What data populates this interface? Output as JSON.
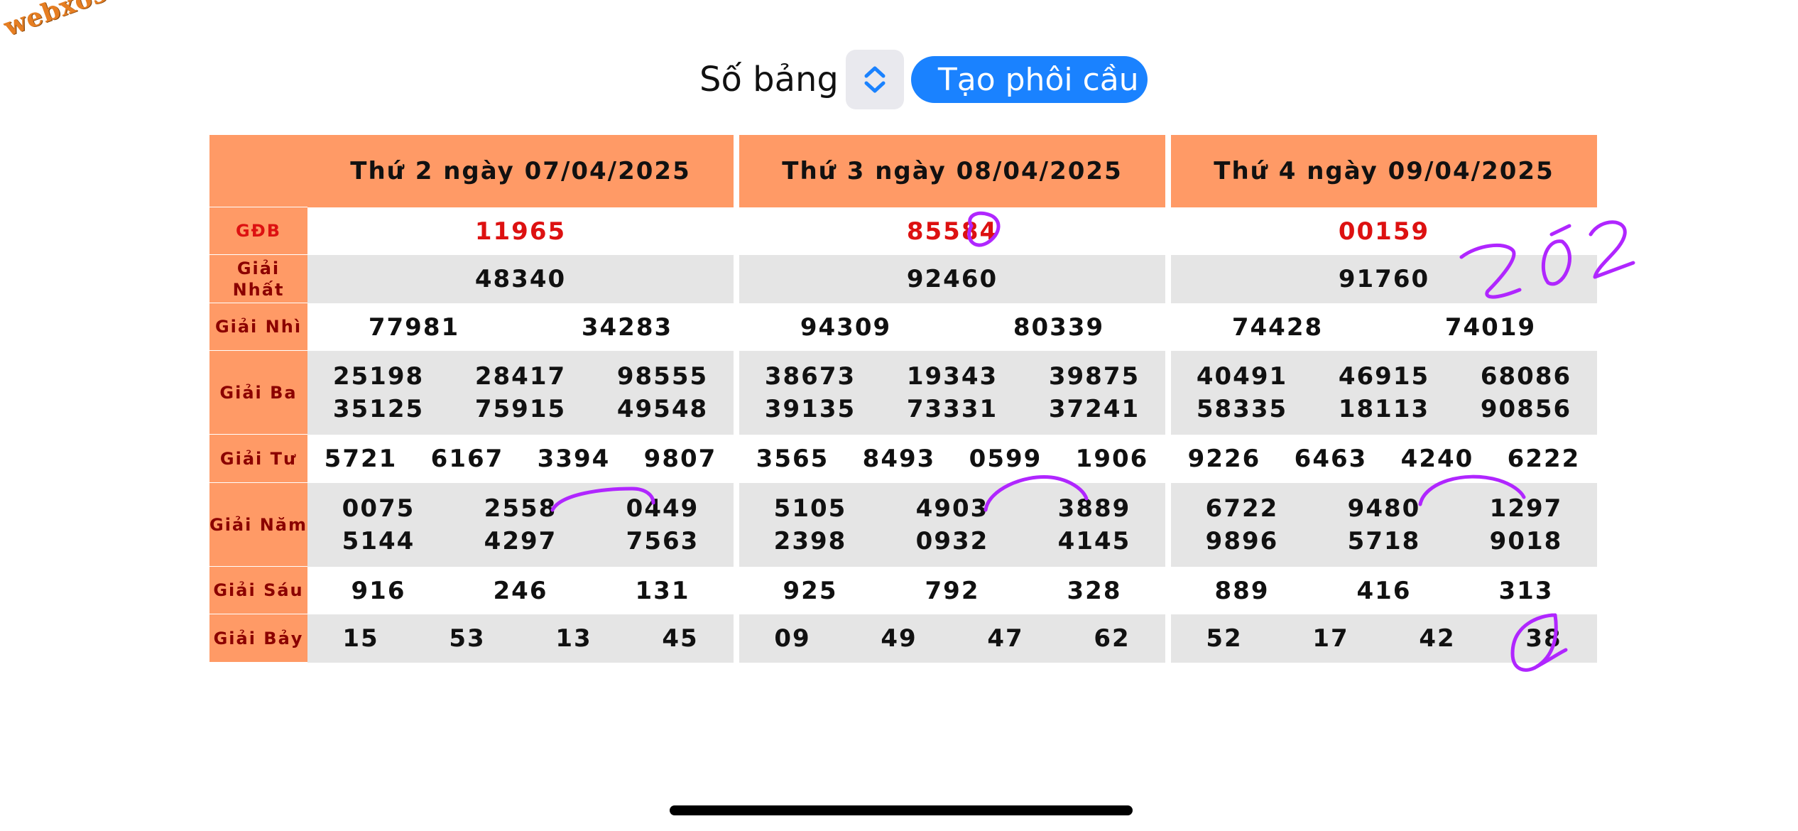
{
  "watermark": "webxoso.net",
  "toolbar": {
    "so_bang_label": "Số bảng",
    "create_button_label": "Tạo phôi cầu"
  },
  "days": [
    {
      "header": "Thứ 2 ngày 07/04/2025",
      "gdb": "11965",
      "nhat": "48340",
      "nhi": [
        "77981",
        "34283"
      ],
      "ba": [
        "25198",
        "28417",
        "98555",
        "35125",
        "75915",
        "49548"
      ],
      "tu": [
        "5721",
        "6167",
        "3394",
        "9807"
      ],
      "nam": [
        "0075",
        "2558",
        "0449",
        "5144",
        "4297",
        "7563"
      ],
      "sau": [
        "916",
        "246",
        "131"
      ],
      "bay": [
        "15",
        "53",
        "13",
        "45"
      ]
    },
    {
      "header": "Thứ 3 ngày 08/04/2025",
      "gdb": "85584",
      "nhat": "92460",
      "nhi": [
        "94309",
        "80339"
      ],
      "ba": [
        "38673",
        "19343",
        "39875",
        "39135",
        "73331",
        "37241"
      ],
      "tu": [
        "3565",
        "8493",
        "0599",
        "1906"
      ],
      "nam": [
        "5105",
        "4903",
        "3889",
        "2398",
        "0932",
        "4145"
      ],
      "sau": [
        "925",
        "792",
        "328"
      ],
      "bay": [
        "09",
        "49",
        "47",
        "62"
      ]
    },
    {
      "header": "Thứ 4 ngày 09/04/2025",
      "gdb": "00159",
      "nhat": "91760",
      "nhi": [
        "74428",
        "74019"
      ],
      "ba": [
        "40491",
        "46915",
        "68086",
        "58335",
        "18113",
        "90856"
      ],
      "tu": [
        "9226",
        "6463",
        "4240",
        "6222"
      ],
      "nam": [
        "6722",
        "9480",
        "1297",
        "9896",
        "5718",
        "9018"
      ],
      "sau": [
        "889",
        "416",
        "313"
      ],
      "bay": [
        "52",
        "17",
        "42",
        "38"
      ]
    }
  ],
  "labels": {
    "gdb": "GĐB",
    "nhat": "Giải Nhất",
    "nhi": "Giải Nhì",
    "ba": "Giải Ba",
    "tu": "Giải Tư",
    "nam": "Giải Năm",
    "sau": "Giải Sáu",
    "bay": "Giải Bảy"
  },
  "annotation_text": "202",
  "colors": {
    "header_bg": "#ff9a66",
    "special_prize": "#dd1111",
    "button": "#1a82ff",
    "ink": "#b026ff"
  }
}
